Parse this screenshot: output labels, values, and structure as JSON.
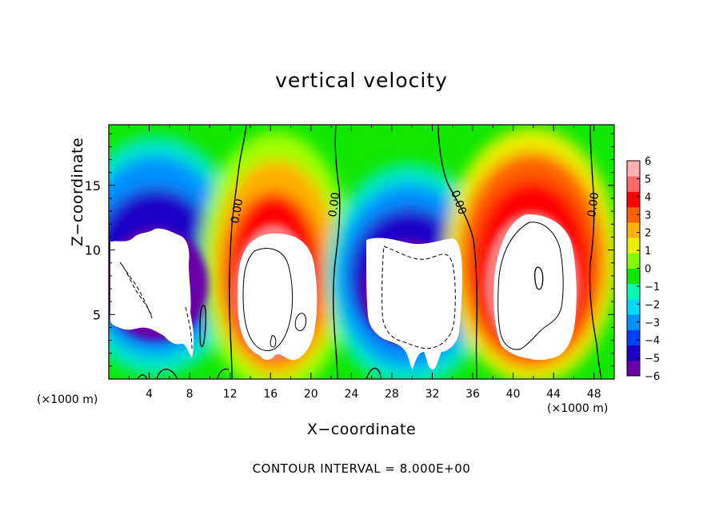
{
  "chart_data": {
    "type": "heatmap",
    "title": "vertical velocity",
    "xlabel": "X−coordinate",
    "ylabel": "Z−coordinate",
    "x_unit_label": "(×1000 m)",
    "x_ticks": [
      "4",
      "8",
      "12",
      "16",
      "20",
      "24",
      "28",
      "32",
      "36",
      "40",
      "44",
      "48"
    ],
    "y_ticks": [
      "5",
      "10",
      "15"
    ],
    "xlim": [
      0,
      50
    ],
    "ylim": [
      0,
      19.7
    ],
    "contour_interval_text": "CONTOUR INTERVAL = 8.000E+00",
    "contour_labels": [
      "0.00",
      "0.00",
      "0.00",
      "0.00"
    ],
    "colorbar": {
      "ticks": [
        "6",
        "5",
        "4",
        "3",
        "2",
        "1",
        "0",
        "−1",
        "−2",
        "−3",
        "−4",
        "−5",
        "−6"
      ],
      "range": [
        -6,
        6
      ],
      "colors": [
        "#6a00a8",
        "#1c00c8",
        "#0040ff",
        "#0090ff",
        "#00d8ff",
        "#00ffb0",
        "#10e800",
        "#80ff00",
        "#e8f000",
        "#ffb000",
        "#ff6000",
        "#ff0000",
        "#ff6868",
        "#ffb0b0"
      ]
    },
    "cells": [
      {
        "name": "downdraft-1",
        "x_center": 5.5,
        "z_center": 13.5,
        "peak": -6,
        "saturated_core": true
      },
      {
        "name": "updraft-1",
        "x_center": 16.5,
        "z_center": 9.5,
        "peak": 6,
        "saturated_core": true
      },
      {
        "name": "downdraft-2",
        "x_center": 29.5,
        "z_center": 11.5,
        "peak": -6,
        "saturated_core": true
      },
      {
        "name": "updraft-2",
        "x_center": 42,
        "z_center": 10.5,
        "peak": 6,
        "saturated_core": true
      }
    ],
    "grid": false
  }
}
